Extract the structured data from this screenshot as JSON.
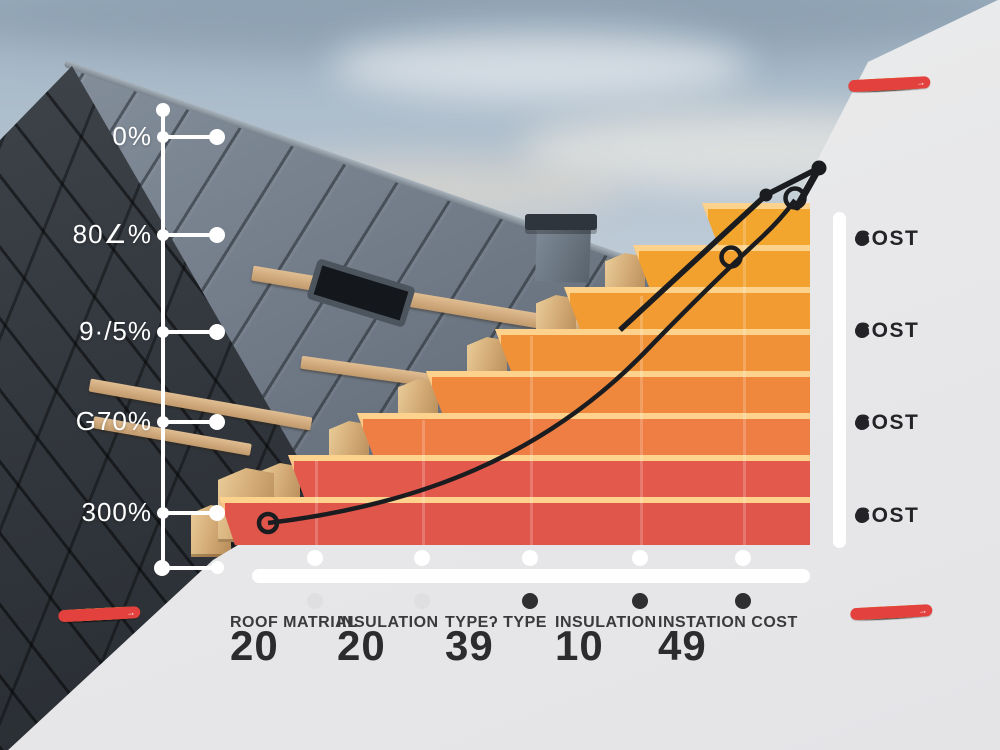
{
  "left_axis": {
    "ticks": [
      "0%",
      "80∠%",
      "9·/5%",
      "G70%",
      "300%"
    ]
  },
  "cost_panel": {
    "items": [
      "COST",
      "COST",
      "COST",
      "COST"
    ]
  },
  "bottom_axis": {
    "columns": [
      {
        "label": "ROOF MATRIAL",
        "value": "20"
      },
      {
        "label": "INSULATION",
        "value": "20"
      },
      {
        "label": "TYPEʔ TYPE",
        "value": "39"
      },
      {
        "label": "INSULATION",
        "value": "10"
      },
      {
        "label": "INSTATION COST",
        "value": "49"
      }
    ]
  },
  "energy_rating": {
    "rows": [
      {
        "glyph": "G",
        "color": "#6db52f"
      },
      {
        "glyph": "→",
        "color": "#d5d13f"
      },
      {
        "glyph": "→",
        "color": "#eec33b"
      },
      {
        "glyph": "→",
        "color": "#f1a83c"
      },
      {
        "glyph": "→",
        "color": "#e2413d"
      }
    ]
  },
  "colors": {
    "bar_reds_to_ambers": [
      "#e0564b",
      "#e3594c",
      "#ee7e44",
      "#ef883d",
      "#f09138",
      "#f19b32",
      "#f2a12e",
      "#f3a62e"
    ],
    "bar_gap": "#fcd28c",
    "panel_gray": "#e9e9ea",
    "curve": "#1b1c1f",
    "text_dark": "#2c2c2e"
  },
  "chart_data": {
    "type": "bar",
    "title": "",
    "categories": [
      "ROOF MATRIAL",
      "INSULATION",
      "TYPEʔ TYPE",
      "INSULATION",
      "INSTATION COST"
    ],
    "values": [
      20,
      20,
      39,
      10,
      49
    ],
    "y_tick_labels": [
      "0%",
      "80∠%",
      "9·/5%",
      "G70%",
      "300%"
    ],
    "legend": [
      "COST",
      "COST",
      "COST",
      "COST"
    ],
    "legend_position": "right",
    "grid": false,
    "annotations": [
      "rising exponential trend curve with arrow over ascending orange/red staircase bars"
    ]
  }
}
